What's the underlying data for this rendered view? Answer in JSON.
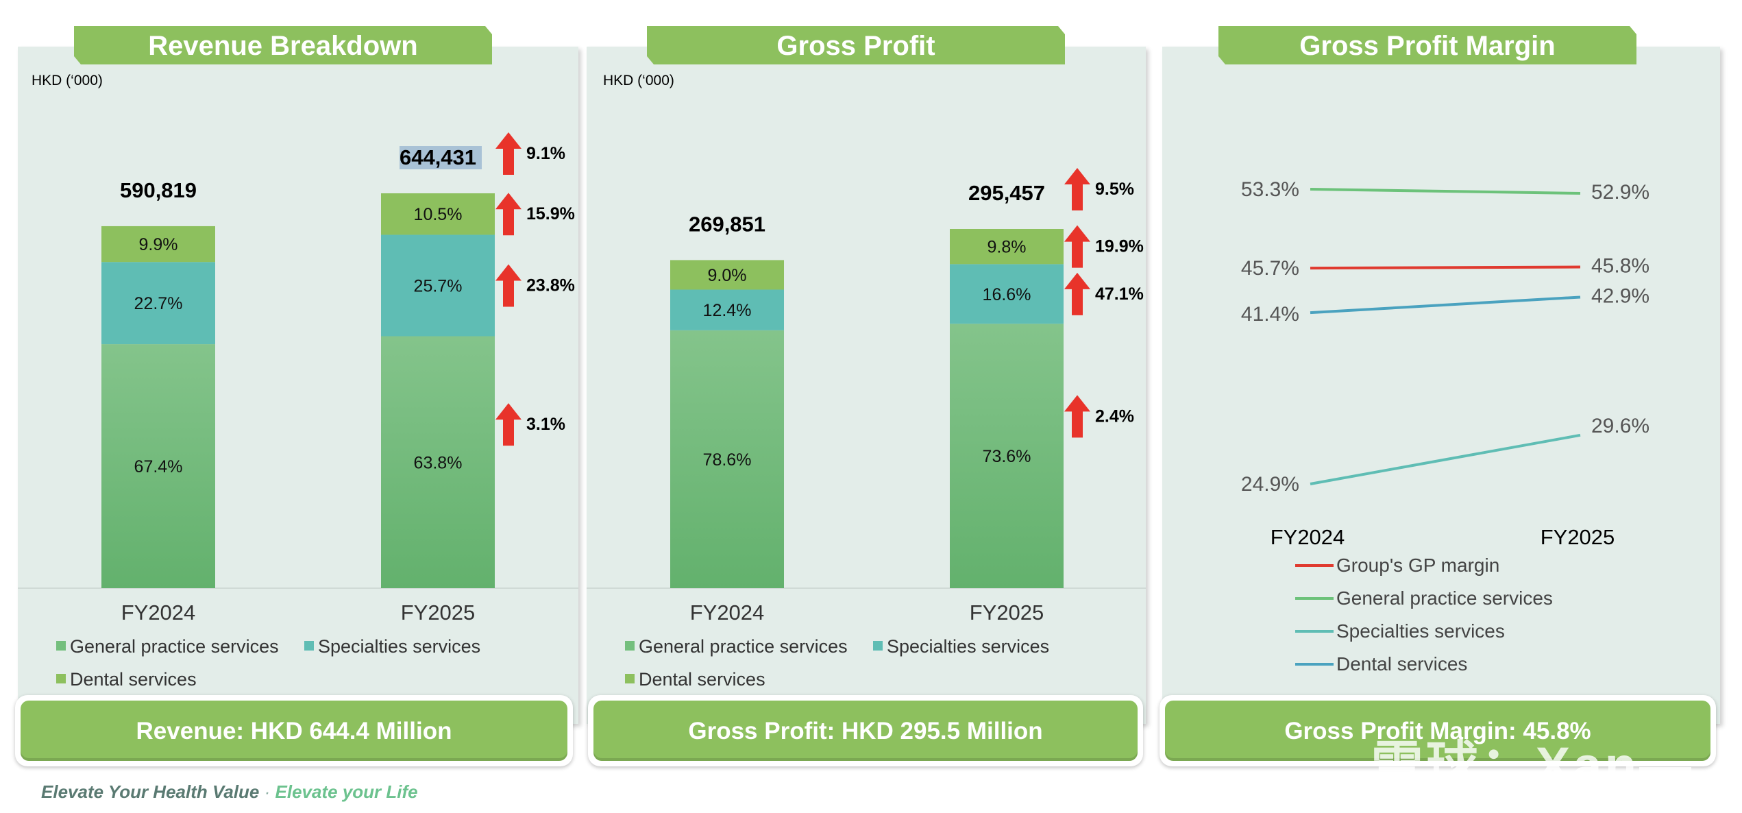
{
  "colors": {
    "general": "#74bf7d",
    "specialties": "#5fbdb4",
    "dental": "#8dc05e",
    "banner": "#8dc05e",
    "arrow": "#e8332a",
    "line_group": "#e03a2f",
    "line_general": "#6cc27a",
    "line_specialties": "#5fbdb4",
    "line_dental": "#4aa2bf"
  },
  "panels": {
    "revenue": {
      "title": "Revenue Breakdown",
      "unit": "HKD (‘000)",
      "summary": "Revenue: HKD 644.4 Million"
    },
    "gross_profit": {
      "title": "Gross Profit",
      "unit": "HKD (‘000)",
      "summary": "Gross Profit: HKD 295.5 Million"
    },
    "margin": {
      "title": "Gross Profit Margin",
      "summary": "Gross Profit Margin: 45.8%"
    }
  },
  "chart_data": [
    {
      "type": "bar",
      "stacked": true,
      "title": "Revenue Breakdown",
      "ylabel": "HKD (‘000)",
      "categories": [
        "FY2024",
        "FY2025"
      ],
      "totals": [
        590819,
        644431
      ],
      "total_labels": [
        "590,819",
        "644,431"
      ],
      "series": [
        {
          "name": "General practice services",
          "share_pct": [
            67.4,
            63.8
          ],
          "labels": [
            "67.4%",
            "63.8%"
          ],
          "growth": "3.1%"
        },
        {
          "name": "Specialties services",
          "share_pct": [
            22.7,
            25.7
          ],
          "labels": [
            "22.7%",
            "25.7%"
          ],
          "growth": "23.8%"
        },
        {
          "name": "Dental services",
          "share_pct": [
            9.9,
            10.5
          ],
          "labels": [
            "9.9%",
            "10.5%"
          ],
          "growth": "15.9%"
        }
      ],
      "total_growth": "9.1%",
      "legend": [
        "General practice services",
        "Specialties services",
        "Dental services"
      ]
    },
    {
      "type": "bar",
      "stacked": true,
      "title": "Gross Profit",
      "ylabel": "HKD (‘000)",
      "categories": [
        "FY2024",
        "FY2025"
      ],
      "totals": [
        269851,
        295457
      ],
      "total_labels": [
        "269,851",
        "295,457"
      ],
      "series": [
        {
          "name": "General practice services",
          "share_pct": [
            78.6,
            73.6
          ],
          "labels": [
            "78.6%",
            "73.6%"
          ],
          "growth": "2.4%"
        },
        {
          "name": "Specialties services",
          "share_pct": [
            12.4,
            16.6
          ],
          "labels": [
            "12.4%",
            "16.6%"
          ],
          "growth": "47.1%"
        },
        {
          "name": "Dental services",
          "share_pct": [
            9.0,
            9.8
          ],
          "labels": [
            "9.0%",
            "9.8%"
          ],
          "growth": "19.9%"
        }
      ],
      "total_growth": "9.5%",
      "legend": [
        "General practice services",
        "Specialties services",
        "Dental services"
      ]
    },
    {
      "type": "line",
      "title": "Gross Profit Margin",
      "categories": [
        "FY2024",
        "FY2025"
      ],
      "series": [
        {
          "name": "Group's GP margin",
          "values": [
            45.7,
            45.8
          ],
          "labels": [
            "45.7%",
            "45.8%"
          ]
        },
        {
          "name": "General practice services",
          "values": [
            53.3,
            52.9
          ],
          "labels": [
            "53.3%",
            "52.9%"
          ]
        },
        {
          "name": "Specialties services",
          "values": [
            24.9,
            29.6
          ],
          "labels": [
            "24.9%",
            "29.6%"
          ]
        },
        {
          "name": "Dental services",
          "values": [
            41.4,
            42.9
          ],
          "labels": [
            "41.4%",
            "42.9%"
          ]
        }
      ]
    }
  ],
  "footer": {
    "left": "Elevate Your Health Value",
    "separator": "·",
    "right": "Elevate your Life"
  },
  "watermark": "雪球：Xan—"
}
